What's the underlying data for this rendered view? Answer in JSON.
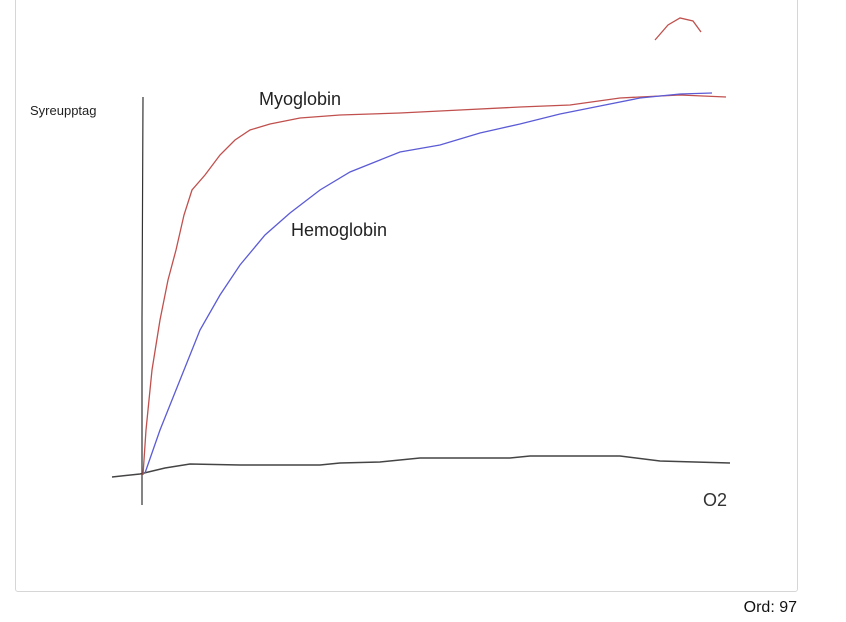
{
  "editor": {
    "drawing": {
      "y_axis_label": "Syreupptag",
      "x_axis_label": "O2",
      "curve_labels": {
        "myoglobin": "Myoglobin",
        "hemoglobin": "Hemoglobin"
      },
      "colors": {
        "myoglobin": "#c0504d",
        "hemoglobin": "#5b5bd6",
        "axes": "#333333"
      }
    },
    "word_count": "Ord: 97"
  }
}
